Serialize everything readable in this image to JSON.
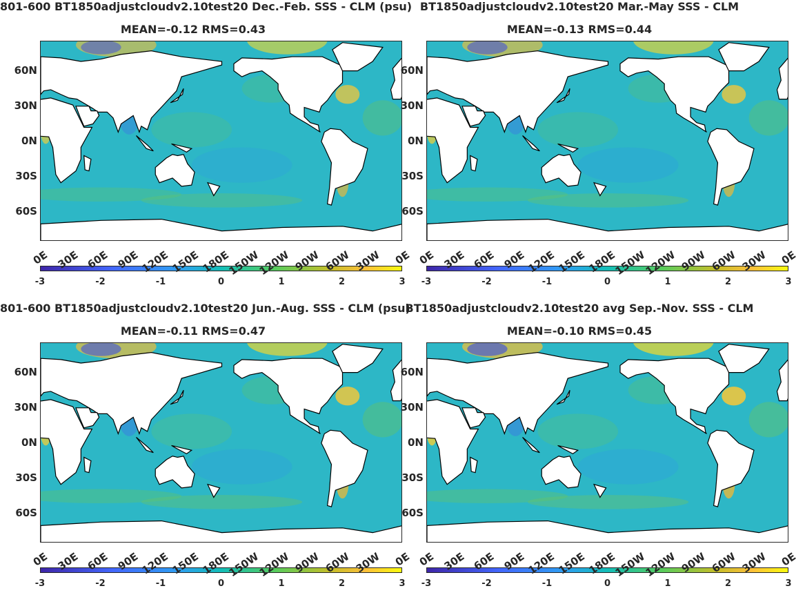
{
  "panels": [
    {
      "title": "801-600 BT1850adjustcloudv2.10test20  Dec.-Feb. SSS - CLM (psu)",
      "stats": "MEAN=-0.12   RMS=0.43"
    },
    {
      "title": "BT1850adjustcloudv2.10test20 Mar.-May SSS - CLM",
      "stats": "MEAN=-0.13   RMS=0.44"
    },
    {
      "title": "801-600 BT1850adjustcloudv2.10test20 Jun.-Aug. SSS - CLM (psu)",
      "stats": "MEAN=-0.11   RMS=0.47"
    },
    {
      "title": "BT1850adjustcloudv2.10test20 avg Sep.-Nov. SSS - CLM",
      "stats": "MEAN=-0.10   RMS=0.45"
    }
  ],
  "lat_ticks": [
    "60N",
    "30N",
    "0N",
    "30S",
    "60S"
  ],
  "lon_ticks": [
    "0E",
    "30E",
    "60E",
    "90E",
    "120E",
    "150E",
    "180E",
    "150W",
    "120W",
    "90W",
    "60W",
    "30W",
    "0E"
  ],
  "colorbar": {
    "ticks": [
      "-3",
      "-2",
      "-1",
      "0",
      "1",
      "2",
      "3"
    ],
    "min": -3,
    "max": 3,
    "colormap": "parula"
  },
  "colors": {
    "ocean": "#2db7c6",
    "land": "#ffffff",
    "coast": "#000000"
  }
}
